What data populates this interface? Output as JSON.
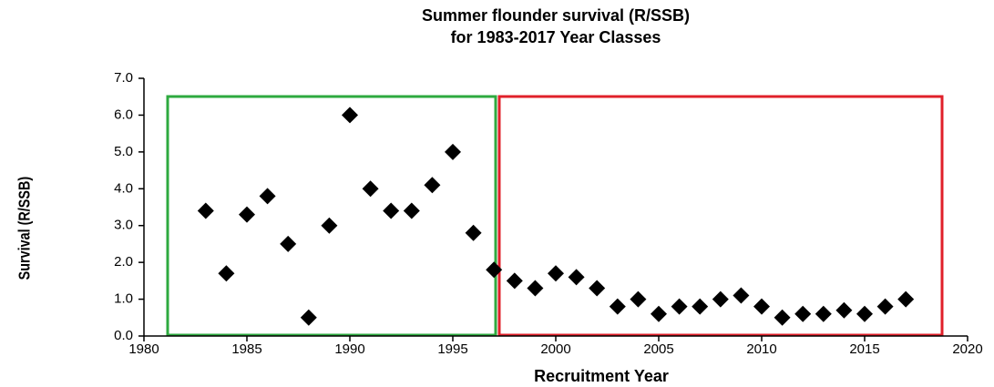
{
  "chart_data": {
    "type": "scatter",
    "title": [
      "Summer flounder survival (R/SSB)",
      "for 1983-2017 Year Classes"
    ],
    "x_label": "Recruitment Year",
    "y_label": "Survival (R/SSB)",
    "x": [
      1983,
      1984,
      1985,
      1986,
      1987,
      1988,
      1989,
      1990,
      1991,
      1992,
      1993,
      1994,
      1995,
      1996,
      1997,
      1998,
      1999,
      2000,
      2001,
      2002,
      2003,
      2004,
      2005,
      2006,
      2007,
      2008,
      2009,
      2010,
      2011,
      2012,
      2013,
      2014,
      2015,
      2016,
      2017
    ],
    "values": [
      3.4,
      1.7,
      3.3,
      3.8,
      2.5,
      0.5,
      3.0,
      6.0,
      4.0,
      3.4,
      3.4,
      4.1,
      5.0,
      2.8,
      1.8,
      1.5,
      1.3,
      1.7,
      1.6,
      1.3,
      0.8,
      1.0,
      0.6,
      0.8,
      0.8,
      1.0,
      1.1,
      0.8,
      0.5,
      0.6,
      0.6,
      0.7,
      0.6,
      0.8,
      1.0
    ],
    "color": "#000000",
    "xlim": [
      1980,
      2020
    ],
    "xticks": [
      1980,
      1985,
      1990,
      1995,
      2000,
      2005,
      2010,
      2015,
      2020
    ],
    "ylim": [
      0,
      7
    ],
    "yticks": [
      {
        "value": 0,
        "label": "0.0"
      },
      {
        "value": 1,
        "label": "1.0"
      },
      {
        "value": 2,
        "label": "2.0"
      },
      {
        "value": 3,
        "label": "3.0"
      },
      {
        "value": 4,
        "label": "4.0"
      },
      {
        "value": 5,
        "label": "5.0"
      },
      {
        "value": 6,
        "label": "6.0"
      },
      {
        "value": 7,
        "label": "7.0"
      }
    ],
    "grid": false
  }
}
